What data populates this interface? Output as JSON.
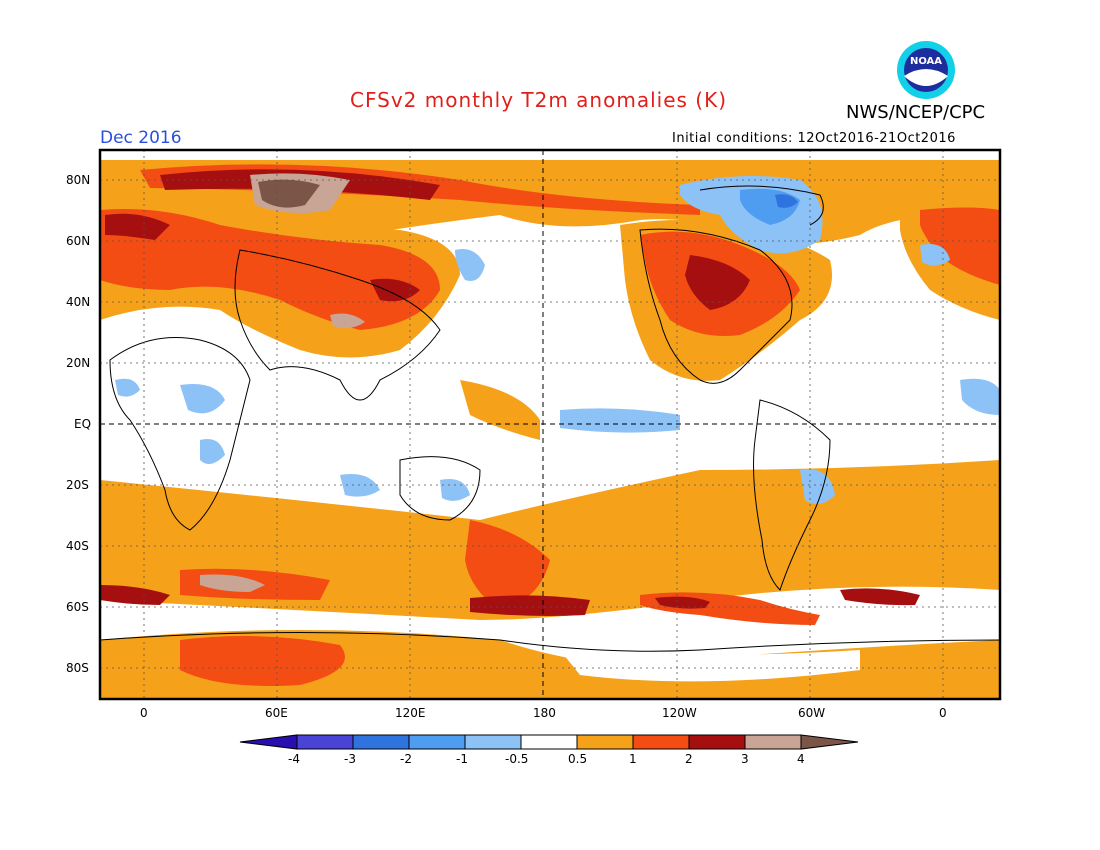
{
  "title": "CFSv2 monthly T2m anomalies (K)",
  "organization": "NWS/NCEP/CPC",
  "logo_text": "NOAA",
  "valid_month": "Dec 2016",
  "initial_conditions": "Initial conditions: 12Oct2016-21Oct2016",
  "lat_labels": [
    "80N",
    "60N",
    "40N",
    "20N",
    "EQ",
    "20S",
    "40S",
    "60S",
    "80S"
  ],
  "lon_labels": [
    "0",
    "60E",
    "120E",
    "180",
    "120W",
    "60W",
    "0"
  ],
  "colorbar": {
    "tick_labels": [
      "-4",
      "-3",
      "-2",
      "-1",
      "-0.5",
      "0.5",
      "1",
      "2",
      "3",
      "4"
    ],
    "colors": [
      "#2a0fb0",
      "#4a44d6",
      "#2f73de",
      "#4f9df0",
      "#8dc2f7",
      "#ffffff",
      "#f5a21a",
      "#f34d14",
      "#a50f0f",
      "#c9a596",
      "#7a5548"
    ]
  }
}
